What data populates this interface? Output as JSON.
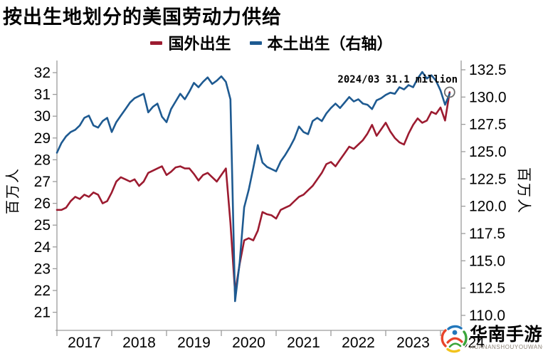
{
  "title": "按出生地划分的美国劳动力供给",
  "legend": {
    "items": [
      {
        "label": "国外出生",
        "color": "#9C1B30"
      },
      {
        "label": "本土出生（右轴）",
        "color": "#1E5A91"
      }
    ]
  },
  "axes": {
    "left": {
      "title": "百万人",
      "tick_labels": [
        "32",
        "31",
        "30",
        "29",
        "28",
        "27",
        "26",
        "25",
        "24",
        "23",
        "22",
        "21"
      ],
      "tick_values": [
        32,
        31,
        30,
        29,
        28,
        27,
        26,
        25,
        24,
        23,
        22,
        21
      ]
    },
    "right": {
      "title": "百万人",
      "tick_labels": [
        "132.5",
        "130.0",
        "127.5",
        "125.0",
        "122.5",
        "120.0",
        "117.5",
        "115.0",
        "112.5",
        "110.0"
      ],
      "tick_values": [
        132.5,
        130.0,
        127.5,
        125.0,
        122.5,
        120.0,
        117.5,
        115.0,
        112.5,
        110.0
      ]
    },
    "bottom": {
      "tick_labels": [
        "2017",
        "2018",
        "2019",
        "2020",
        "2021",
        "2022",
        "2023",
        "2024"
      ],
      "tick_values": [
        2017,
        2018,
        2019,
        2020,
        2021,
        2022,
        2023,
        2024
      ]
    }
  },
  "annotation": {
    "text": "2024/03 31.1 million",
    "marker_color": "#6b6b6b",
    "marker_series": 0
  },
  "watermark": {
    "name": "华南手游网",
    "pinyin": "HUANANSHOUYOUWANG"
  },
  "chart_data": {
    "type": "line",
    "title": "按出生地划分的美国劳动力供给",
    "x_start": "2017-01",
    "x_end": "2024-03",
    "frequency": "monthly",
    "xlabel": "",
    "ylabel_left": "百万人",
    "ylabel_right": "百万人",
    "left_ylim": [
      20.2,
      32.6
    ],
    "right_ylim": [
      108.6,
      133.4
    ],
    "x_ticks": [
      2017,
      2018,
      2019,
      2020,
      2021,
      2022,
      2023,
      2024
    ],
    "legend_position": "top-center",
    "grid": false,
    "series": [
      {
        "name": "国外出生",
        "axis": "left",
        "color": "#9C1B30",
        "values": [
          25.7,
          25.7,
          25.8,
          26.1,
          26.3,
          26.2,
          26.4,
          26.3,
          26.5,
          26.4,
          26.0,
          26.1,
          26.5,
          27.0,
          27.2,
          27.1,
          27.0,
          27.1,
          26.8,
          27.0,
          27.4,
          27.5,
          27.6,
          27.7,
          27.3,
          27.45,
          27.65,
          27.7,
          27.6,
          27.6,
          27.35,
          27.05,
          27.3,
          27.4,
          27.2,
          27.0,
          27.3,
          27.6,
          25.1,
          21.9,
          23.2,
          24.3,
          24.4,
          24.3,
          24.75,
          25.6,
          25.5,
          25.45,
          25.3,
          25.7,
          25.8,
          25.9,
          26.1,
          26.3,
          26.4,
          26.6,
          26.8,
          27.1,
          27.4,
          27.8,
          27.9,
          27.7,
          28.0,
          28.3,
          28.6,
          28.5,
          28.7,
          28.9,
          29.2,
          29.6,
          29.1,
          29.4,
          29.7,
          29.3,
          29.0,
          28.8,
          28.7,
          29.2,
          29.6,
          29.9,
          29.7,
          29.8,
          30.2,
          30.1,
          30.4,
          29.8,
          31.1
        ]
      },
      {
        "name": "本土出生（右轴）",
        "axis": "right",
        "color": "#1E5A91",
        "values": [
          124.9,
          125.8,
          126.4,
          126.8,
          127.0,
          127.4,
          128.1,
          128.3,
          127.4,
          127.2,
          127.8,
          128.1,
          126.8,
          127.7,
          128.3,
          128.9,
          129.5,
          129.9,
          130.1,
          130.3,
          128.6,
          129.1,
          129.4,
          128.2,
          127.7,
          128.9,
          129.6,
          130.3,
          129.8,
          130.5,
          131.3,
          130.9,
          131.4,
          131.8,
          131.2,
          131.5,
          131.9,
          131.4,
          129.8,
          111.3,
          114.8,
          119.9,
          121.5,
          123.5,
          125.6,
          124.0,
          123.6,
          123.4,
          123.2,
          124.1,
          124.7,
          125.4,
          126.2,
          127.3,
          126.8,
          126.6,
          127.8,
          128.1,
          127.8,
          128.5,
          129.0,
          129.4,
          129.0,
          129.5,
          130.0,
          129.6,
          129.8,
          129.4,
          129.3,
          128.9,
          129.7,
          129.9,
          130.2,
          130.4,
          130.3,
          130.9,
          130.7,
          131.1,
          130.9,
          131.7,
          132.3,
          131.7,
          132.0,
          131.5,
          130.6,
          129.3,
          130.3
        ]
      }
    ],
    "annotations": [
      {
        "text": "2024/03 31.1 million",
        "series": "国外出生",
        "x": "2024-03",
        "value": 31.1
      }
    ]
  }
}
